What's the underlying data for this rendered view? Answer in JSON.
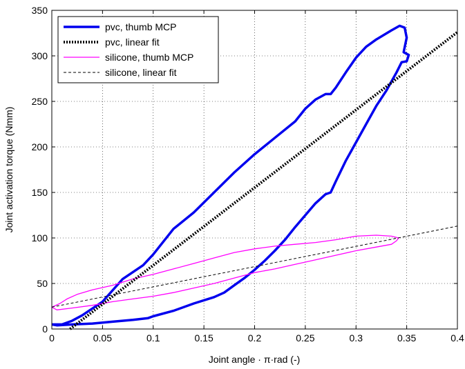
{
  "chart_data": {
    "type": "line",
    "xlabel": "Joint angle · π·rad (-)",
    "ylabel": "Joint activation torque (Nmm)",
    "xlim": [
      0,
      0.4
    ],
    "ylim": [
      0,
      350
    ],
    "xticks": [
      0,
      0.05,
      0.1,
      0.15,
      0.2,
      0.25,
      0.3,
      0.35,
      0.4
    ],
    "xtick_labels": [
      "0",
      "0.05",
      "0.1",
      "0.15",
      "0.2",
      "0.25",
      "0.3",
      "0.35",
      "0.4"
    ],
    "yticks": [
      0,
      50,
      100,
      150,
      200,
      250,
      300,
      350
    ],
    "ytick_labels": [
      "0",
      "50",
      "100",
      "150",
      "200",
      "250",
      "300",
      "350"
    ],
    "grid": true,
    "legend_position": "top-left",
    "series": [
      {
        "name": "pvc, thumb MCP",
        "color": "#0000ee",
        "style": "solid-thick",
        "points": [
          [
            0.0,
            5
          ],
          [
            0.005,
            4
          ],
          [
            0.02,
            5
          ],
          [
            0.04,
            6
          ],
          [
            0.06,
            8
          ],
          [
            0.08,
            10
          ],
          [
            0.095,
            12
          ],
          [
            0.1,
            14
          ],
          [
            0.12,
            20
          ],
          [
            0.14,
            28
          ],
          [
            0.16,
            35
          ],
          [
            0.17,
            40
          ],
          [
            0.18,
            48
          ],
          [
            0.19,
            56
          ],
          [
            0.2,
            65
          ],
          [
            0.21,
            75
          ],
          [
            0.22,
            86
          ],
          [
            0.23,
            98
          ],
          [
            0.24,
            112
          ],
          [
            0.25,
            125
          ],
          [
            0.26,
            138
          ],
          [
            0.27,
            148
          ],
          [
            0.275,
            150
          ],
          [
            0.28,
            162
          ],
          [
            0.29,
            185
          ],
          [
            0.3,
            205
          ],
          [
            0.31,
            225
          ],
          [
            0.32,
            245
          ],
          [
            0.33,
            262
          ],
          [
            0.34,
            282
          ],
          [
            0.345,
            293
          ],
          [
            0.35,
            294
          ],
          [
            0.352,
            301
          ],
          [
            0.347,
            304
          ],
          [
            0.35,
            320
          ],
          [
            0.348,
            331
          ],
          [
            0.343,
            333
          ],
          [
            0.335,
            328
          ],
          [
            0.32,
            318
          ],
          [
            0.31,
            310
          ],
          [
            0.3,
            298
          ],
          [
            0.29,
            282
          ],
          [
            0.28,
            265
          ],
          [
            0.275,
            258
          ],
          [
            0.27,
            258
          ],
          [
            0.26,
            252
          ],
          [
            0.25,
            242
          ],
          [
            0.24,
            228
          ],
          [
            0.22,
            210
          ],
          [
            0.2,
            192
          ],
          [
            0.18,
            172
          ],
          [
            0.16,
            150
          ],
          [
            0.14,
            128
          ],
          [
            0.12,
            110
          ],
          [
            0.1,
            82
          ],
          [
            0.09,
            70
          ],
          [
            0.07,
            55
          ],
          [
            0.05,
            30
          ],
          [
            0.03,
            15
          ],
          [
            0.02,
            9
          ],
          [
            0.01,
            5
          ],
          [
            0.0,
            5
          ]
        ]
      },
      {
        "name": "pvc, linear fit",
        "color": "#000000",
        "style": "dotted-thick",
        "points": [
          [
            0.018,
            0
          ],
          [
            0.4,
            326
          ]
        ]
      },
      {
        "name": "silicone, thumb MCP",
        "color": "#ff00ff",
        "style": "solid-thin",
        "points": [
          [
            0.0,
            24
          ],
          [
            0.005,
            21
          ],
          [
            0.02,
            23
          ],
          [
            0.04,
            26
          ],
          [
            0.06,
            30
          ],
          [
            0.08,
            33
          ],
          [
            0.1,
            36
          ],
          [
            0.12,
            40
          ],
          [
            0.14,
            45
          ],
          [
            0.16,
            50
          ],
          [
            0.18,
            56
          ],
          [
            0.2,
            62
          ],
          [
            0.22,
            66
          ],
          [
            0.24,
            71
          ],
          [
            0.26,
            76
          ],
          [
            0.28,
            81
          ],
          [
            0.3,
            86
          ],
          [
            0.32,
            90
          ],
          [
            0.335,
            93
          ],
          [
            0.34,
            97
          ],
          [
            0.342,
            100
          ],
          [
            0.335,
            102
          ],
          [
            0.32,
            103
          ],
          [
            0.3,
            102
          ],
          [
            0.28,
            98
          ],
          [
            0.26,
            95
          ],
          [
            0.24,
            93
          ],
          [
            0.22,
            91
          ],
          [
            0.2,
            88
          ],
          [
            0.18,
            84
          ],
          [
            0.16,
            78
          ],
          [
            0.14,
            72
          ],
          [
            0.12,
            66
          ],
          [
            0.1,
            60
          ],
          [
            0.08,
            55
          ],
          [
            0.06,
            48
          ],
          [
            0.04,
            43
          ],
          [
            0.025,
            38
          ],
          [
            0.015,
            33
          ],
          [
            0.008,
            28
          ],
          [
            0.0,
            24
          ]
        ]
      },
      {
        "name": "silicone, linear fit",
        "color": "#000000",
        "style": "dashed-thin",
        "points": [
          [
            0.0,
            24
          ],
          [
            0.4,
            113
          ]
        ]
      }
    ]
  }
}
